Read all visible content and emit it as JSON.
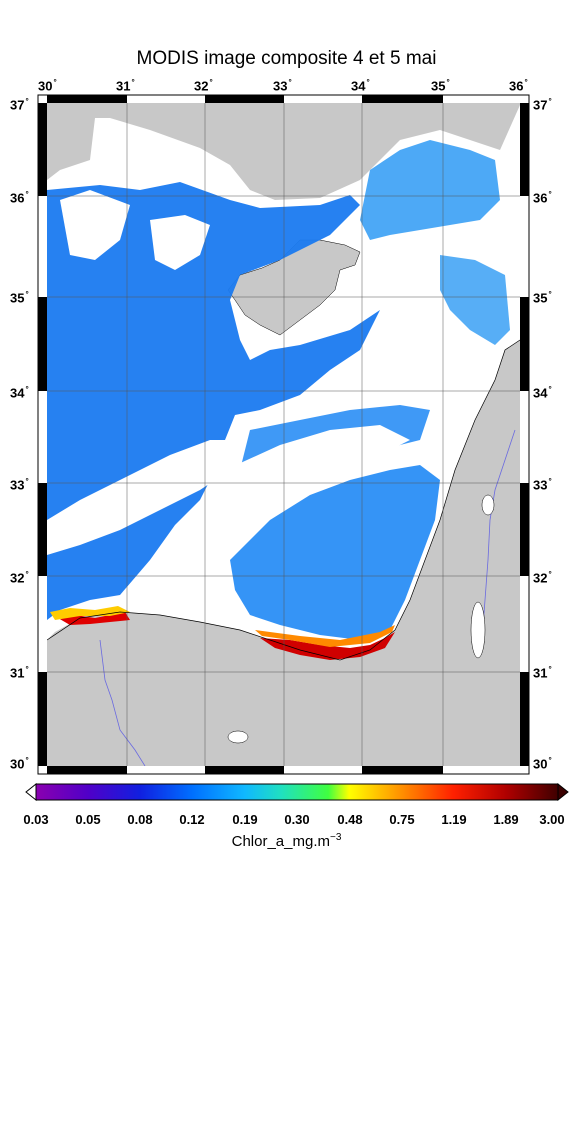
{
  "title": "MODIS image composite 4 et 5 mai",
  "map": {
    "lon_ticks": [
      "30",
      "31",
      "32",
      "33",
      "34",
      "35",
      "36"
    ],
    "lat_ticks": [
      "37",
      "36",
      "35",
      "34",
      "33",
      "32",
      "31",
      "30"
    ],
    "degree_symbol": "°",
    "land_color": "#c8c8c8",
    "cloud_color": "#ffffff",
    "river_color": "#6a6ae0"
  },
  "colorbar": {
    "labels": [
      "0.03",
      "0.05",
      "0.08",
      "0.12",
      "0.19",
      "0.30",
      "0.48",
      "0.75",
      "1.19",
      "1.89",
      "3.00"
    ],
    "unit_text": "Chlor_a_mg.m",
    "unit_exponent": "−3",
    "colors": [
      "#8a00b0",
      "#5000c8",
      "#1020e0",
      "#0070ff",
      "#10b8ff",
      "#20e0c0",
      "#40ff40",
      "#ffff00",
      "#ff9000",
      "#ff2000",
      "#b00000",
      "#400000"
    ]
  }
}
